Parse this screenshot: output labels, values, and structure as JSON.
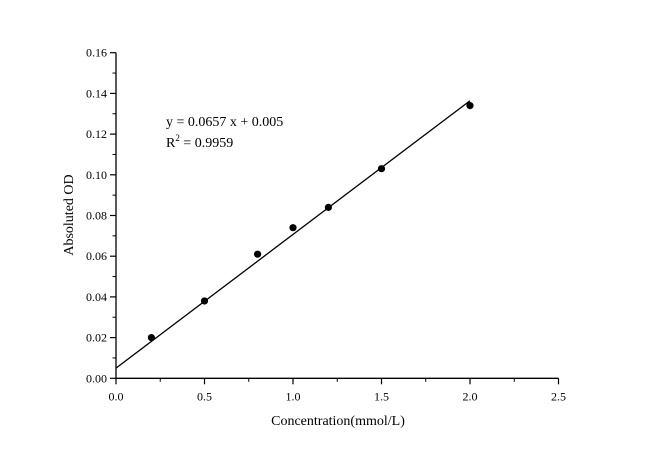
{
  "chart_data": {
    "type": "scatter",
    "title": "",
    "xlabel": "Concentration(mmol/L)",
    "ylabel": "Absoluted OD",
    "xlim": [
      0,
      2.5
    ],
    "ylim": [
      0,
      0.16
    ],
    "x_ticks": [
      "0.0",
      "0.5",
      "1.0",
      "1.5",
      "2.0",
      "2.5"
    ],
    "y_ticks": [
      "0.00",
      "0.02",
      "0.04",
      "0.06",
      "0.08",
      "0.10",
      "0.12",
      "0.14",
      "0.16"
    ],
    "grid": false,
    "points": {
      "x": [
        0.2,
        0.5,
        0.8,
        1.0,
        1.2,
        1.5,
        2.0
      ],
      "y": [
        0.02,
        0.038,
        0.061,
        0.074,
        0.084,
        0.103,
        0.134
      ]
    },
    "fit_line": {
      "slope": 0.0657,
      "intercept": 0.005,
      "x_range": [
        0,
        2.0
      ]
    },
    "annotations": {
      "equation": "y = 0.0657 x + 0.005",
      "r2_label": "R",
      "r2_sup": "2",
      "r2_value": " = 0.9959"
    },
    "colors": {
      "points": "#000000",
      "line": "#000000"
    }
  }
}
